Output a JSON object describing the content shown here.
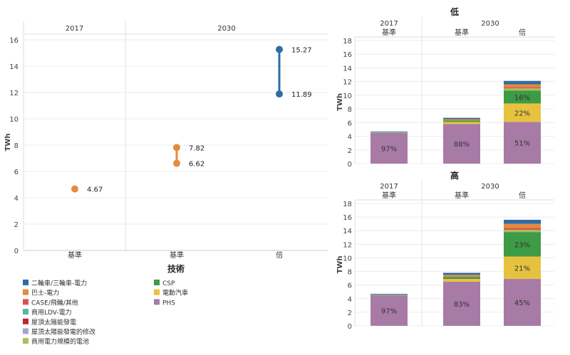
{
  "legend": {
    "title": "技術",
    "items": [
      {
        "label": "二輪車/三輪車-電力",
        "color": "#2e6da4"
      },
      {
        "label": "巴士-電力",
        "color": "#e48b3c"
      },
      {
        "label": "CASE/飛輪/其他",
        "color": "#d9534f"
      },
      {
        "label": "商用LDV-電力",
        "color": "#5bb5a2"
      },
      {
        "label": "屋頂太陽能發電",
        "color": "#c0282d"
      },
      {
        "label": "屋頂太陽能發電的修改",
        "color": "#a7a3d6"
      },
      {
        "label": "商用電力規模的電池",
        "color": "#a5c257"
      },
      {
        "label": "CSP",
        "color": "#3d9a45"
      },
      {
        "label": "電動汽車",
        "color": "#e7c23f"
      },
      {
        "label": "PHS",
        "color": "#a77ba6"
      }
    ]
  },
  "chart_data": [
    {
      "type": "scatter",
      "ylabel": "TWh",
      "ylim": [
        0,
        16
      ],
      "yticks": [
        0,
        2,
        4,
        6,
        8,
        10,
        12,
        14,
        16
      ],
      "year_headers": [
        "2017",
        "2030"
      ],
      "categories": [
        "基準",
        "基準",
        "倍"
      ],
      "points": [
        {
          "category_index": 0,
          "values": [
            4.67
          ],
          "labels": [
            "4.67"
          ],
          "color": "#e48b3c"
        },
        {
          "category_index": 1,
          "values": [
            6.62,
            7.82
          ],
          "labels": [
            "6.62",
            "7.82"
          ],
          "color": "#e48b3c"
        },
        {
          "category_index": 2,
          "values": [
            11.89,
            15.27
          ],
          "labels": [
            "11.89",
            "15.27"
          ],
          "color": "#2e6da4"
        }
      ]
    },
    {
      "type": "bar",
      "title": "低",
      "ylabel": "TWh",
      "ylim": [
        0,
        18
      ],
      "yticks": [
        0,
        2,
        4,
        6,
        8,
        10,
        12,
        14,
        16,
        18
      ],
      "year_headers": [
        "2017",
        "2030"
      ],
      "categories": [
        "基準",
        "基準",
        "倍"
      ],
      "stacks": [
        {
          "segments": [
            {
              "tech": "PHS",
              "value": 4.5,
              "label": "97%"
            },
            {
              "tech": "商用電力規模的電池",
              "value": 0.1
            },
            {
              "tech": "二輪車/三輪車-電力",
              "value": 0.1
            }
          ]
        },
        {
          "segments": [
            {
              "tech": "PHS",
              "value": 5.8,
              "label": "88%"
            },
            {
              "tech": "電動汽車",
              "value": 0.3
            },
            {
              "tech": "CSP",
              "value": 0.2
            },
            {
              "tech": "巴士-電力",
              "value": 0.2
            },
            {
              "tech": "二輪車/三輪車-電力",
              "value": 0.2
            }
          ]
        },
        {
          "segments": [
            {
              "tech": "PHS",
              "value": 6.1,
              "label": "51%"
            },
            {
              "tech": "電動汽車",
              "value": 2.7,
              "label": "22%"
            },
            {
              "tech": "CSP",
              "value": 1.9,
              "label": "16%"
            },
            {
              "tech": "商用電力規模的電池",
              "value": 0.3
            },
            {
              "tech": "CASE/飛輪/其他",
              "value": 0.2
            },
            {
              "tech": "巴士-電力",
              "value": 0.4
            },
            {
              "tech": "二輪車/三輪車-電力",
              "value": 0.5
            }
          ]
        }
      ]
    },
    {
      "type": "bar",
      "title": "高",
      "ylabel": "TWh",
      "ylim": [
        0,
        18
      ],
      "yticks": [
        0,
        2,
        4,
        6,
        8,
        10,
        12,
        14,
        16,
        18
      ],
      "year_headers": [
        "2017",
        "2030"
      ],
      "categories": [
        "基準",
        "基準",
        "倍"
      ],
      "stacks": [
        {
          "segments": [
            {
              "tech": "PHS",
              "value": 4.5,
              "label": "97%"
            },
            {
              "tech": "商用電力規模的電池",
              "value": 0.1
            },
            {
              "tech": "二輪車/三輪車-電力",
              "value": 0.1
            }
          ]
        },
        {
          "segments": [
            {
              "tech": "PHS",
              "value": 6.5,
              "label": "83%"
            },
            {
              "tech": "電動汽車",
              "value": 0.4
            },
            {
              "tech": "CSP",
              "value": 0.3
            },
            {
              "tech": "巴士-電力",
              "value": 0.3
            },
            {
              "tech": "二輪車/三輪車-電力",
              "value": 0.3
            }
          ]
        },
        {
          "segments": [
            {
              "tech": "PHS",
              "value": 6.9,
              "label": "45%"
            },
            {
              "tech": "電動汽車",
              "value": 3.3,
              "label": "21%"
            },
            {
              "tech": "CSP",
              "value": 3.6,
              "label": "23%"
            },
            {
              "tech": "商用電力規模的電池",
              "value": 0.3
            },
            {
              "tech": "CASE/飛輪/其他",
              "value": 0.3
            },
            {
              "tech": "巴士-電力",
              "value": 0.6
            },
            {
              "tech": "二輪車/三輪車-電力",
              "value": 0.6
            }
          ]
        }
      ]
    }
  ]
}
